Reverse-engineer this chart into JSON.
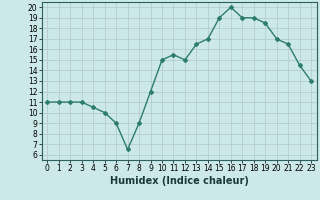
{
  "x": [
    0,
    1,
    2,
    3,
    4,
    5,
    6,
    7,
    8,
    9,
    10,
    11,
    12,
    13,
    14,
    15,
    16,
    17,
    18,
    19,
    20,
    21,
    22,
    23
  ],
  "y": [
    11,
    11,
    11,
    11,
    10.5,
    10,
    9,
    6.5,
    9,
    12,
    15,
    15.5,
    15,
    16.5,
    17,
    19,
    20,
    19,
    19,
    18.5,
    17,
    16.5,
    14.5,
    13
  ],
  "line_color": "#2d7d6e",
  "marker": "D",
  "marker_size": 2.0,
  "xlabel": "Humidex (Indice chaleur)",
  "xlim": [
    -0.5,
    23.5
  ],
  "ylim": [
    5.5,
    20.5
  ],
  "yticks": [
    6,
    7,
    8,
    9,
    10,
    11,
    12,
    13,
    14,
    15,
    16,
    17,
    18,
    19,
    20
  ],
  "xticks": [
    0,
    1,
    2,
    3,
    4,
    5,
    6,
    7,
    8,
    9,
    10,
    11,
    12,
    13,
    14,
    15,
    16,
    17,
    18,
    19,
    20,
    21,
    22,
    23
  ],
  "bg_color": "#cce8e8",
  "grid_color": "#b0c8c8",
  "tick_label_fontsize": 5.5,
  "xlabel_fontsize": 7.0,
  "linewidth": 1.0
}
